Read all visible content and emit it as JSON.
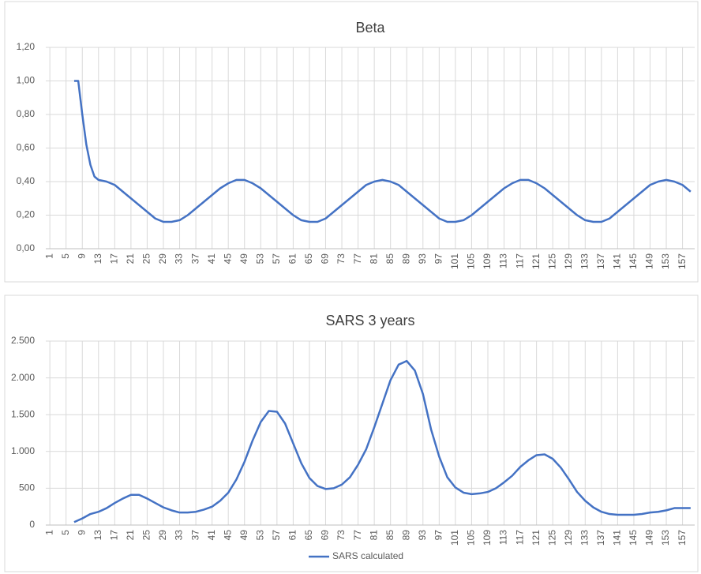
{
  "chart_data": [
    {
      "type": "line",
      "title": "Beta",
      "x": [
        7,
        8,
        9,
        10,
        11,
        12,
        13,
        15,
        17,
        19,
        21,
        23,
        25,
        27,
        29,
        31,
        33,
        35,
        37,
        39,
        41,
        43,
        45,
        47,
        49,
        51,
        53,
        55,
        57,
        59,
        61,
        63,
        65,
        67,
        69,
        71,
        73,
        75,
        77,
        79,
        81,
        83,
        85,
        87,
        89,
        91,
        93,
        95,
        97,
        99,
        101,
        103,
        105,
        107,
        109,
        111,
        113,
        115,
        117,
        119,
        121,
        123,
        125,
        127,
        129,
        131,
        133,
        135,
        137,
        139,
        141,
        143,
        145,
        147,
        149,
        151,
        153,
        155,
        157,
        159
      ],
      "series": [
        {
          "color": "#4472c4",
          "values": [
            1,
            1,
            0.8,
            0.62,
            0.5,
            0.43,
            0.41,
            0.4,
            0.38,
            0.34,
            0.3,
            0.26,
            0.22,
            0.18,
            0.16,
            0.16,
            0.17,
            0.2,
            0.24,
            0.28,
            0.32,
            0.36,
            0.39,
            0.41,
            0.41,
            0.39,
            0.36,
            0.32,
            0.28,
            0.24,
            0.2,
            0.17,
            0.16,
            0.16,
            0.18,
            0.22,
            0.26,
            0.3,
            0.34,
            0.38,
            0.4,
            0.41,
            0.4,
            0.38,
            0.34,
            0.3,
            0.26,
            0.22,
            0.18,
            0.16,
            0.16,
            0.17,
            0.2,
            0.24,
            0.28,
            0.32,
            0.36,
            0.39,
            0.41,
            0.41,
            0.39,
            0.36,
            0.32,
            0.28,
            0.24,
            0.2,
            0.17,
            0.16,
            0.16,
            0.18,
            0.22,
            0.26,
            0.3,
            0.34,
            0.38,
            0.4,
            0.41,
            0.4,
            0.38,
            0.34
          ]
        }
      ],
      "xlim": [
        0,
        160
      ],
      "xticks": [
        1,
        5,
        9,
        13,
        17,
        21,
        25,
        29,
        33,
        37,
        41,
        45,
        49,
        53,
        57,
        61,
        65,
        69,
        73,
        77,
        81,
        85,
        89,
        93,
        97,
        101,
        105,
        109,
        113,
        117,
        121,
        125,
        129,
        133,
        137,
        141,
        145,
        149,
        153,
        157
      ],
      "ylim": [
        0,
        1.2
      ],
      "yticks": [
        {
          "value": 0,
          "label": "0,00"
        },
        {
          "value": 0.2,
          "label": "0,20"
        },
        {
          "value": 0.4,
          "label": "0,40"
        },
        {
          "value": 0.6,
          "label": "0,60"
        },
        {
          "value": 0.8,
          "label": "0,80"
        },
        {
          "value": 1,
          "label": "1,00"
        },
        {
          "value": 1.2,
          "label": "1,20"
        }
      ],
      "grid": true
    },
    {
      "type": "line",
      "title": "SARS 3 years",
      "x": [
        7,
        9,
        11,
        13,
        15,
        17,
        19,
        21,
        23,
        25,
        27,
        29,
        31,
        33,
        35,
        37,
        39,
        41,
        43,
        45,
        47,
        49,
        51,
        53,
        55,
        57,
        59,
        61,
        63,
        65,
        67,
        69,
        71,
        73,
        75,
        77,
        79,
        81,
        83,
        85,
        87,
        89,
        91,
        93,
        95,
        97,
        99,
        101,
        103,
        105,
        107,
        109,
        111,
        113,
        115,
        117,
        119,
        121,
        123,
        125,
        127,
        129,
        131,
        133,
        135,
        137,
        139,
        141,
        143,
        145,
        147,
        149,
        151,
        153,
        155,
        157,
        159
      ],
      "series": [
        {
          "name": "SARS calculated",
          "color": "#4472c4",
          "values": [
            40,
            90,
            150,
            180,
            230,
            300,
            360,
            410,
            410,
            360,
            300,
            240,
            200,
            170,
            170,
            180,
            210,
            250,
            330,
            440,
            620,
            860,
            1150,
            1400,
            1550,
            1540,
            1380,
            1110,
            840,
            640,
            530,
            490,
            500,
            550,
            650,
            820,
            1030,
            1330,
            1650,
            1970,
            2180,
            2230,
            2100,
            1780,
            1300,
            930,
            650,
            510,
            440,
            420,
            430,
            450,
            500,
            580,
            670,
            790,
            880,
            950,
            960,
            900,
            780,
            620,
            450,
            330,
            240,
            180,
            150,
            140,
            140,
            140,
            150,
            170,
            180,
            200,
            230,
            230,
            230
          ]
        }
      ],
      "xlim": [
        0,
        160
      ],
      "xticks": [
        1,
        5,
        9,
        13,
        17,
        21,
        25,
        29,
        33,
        37,
        41,
        45,
        49,
        53,
        57,
        61,
        65,
        69,
        73,
        77,
        81,
        85,
        89,
        93,
        97,
        101,
        105,
        109,
        113,
        117,
        121,
        125,
        129,
        133,
        137,
        141,
        145,
        149,
        153,
        157
      ],
      "ylim": [
        0,
        2500
      ],
      "yticks": [
        0,
        500,
        {
          "value": 1000,
          "label": "1.000"
        },
        {
          "value": 1500,
          "label": "1.500"
        },
        {
          "value": 2000,
          "label": "2.000"
        },
        {
          "value": 2500,
          "label": "2.500"
        }
      ],
      "grid": true,
      "legend": "bottom"
    }
  ]
}
